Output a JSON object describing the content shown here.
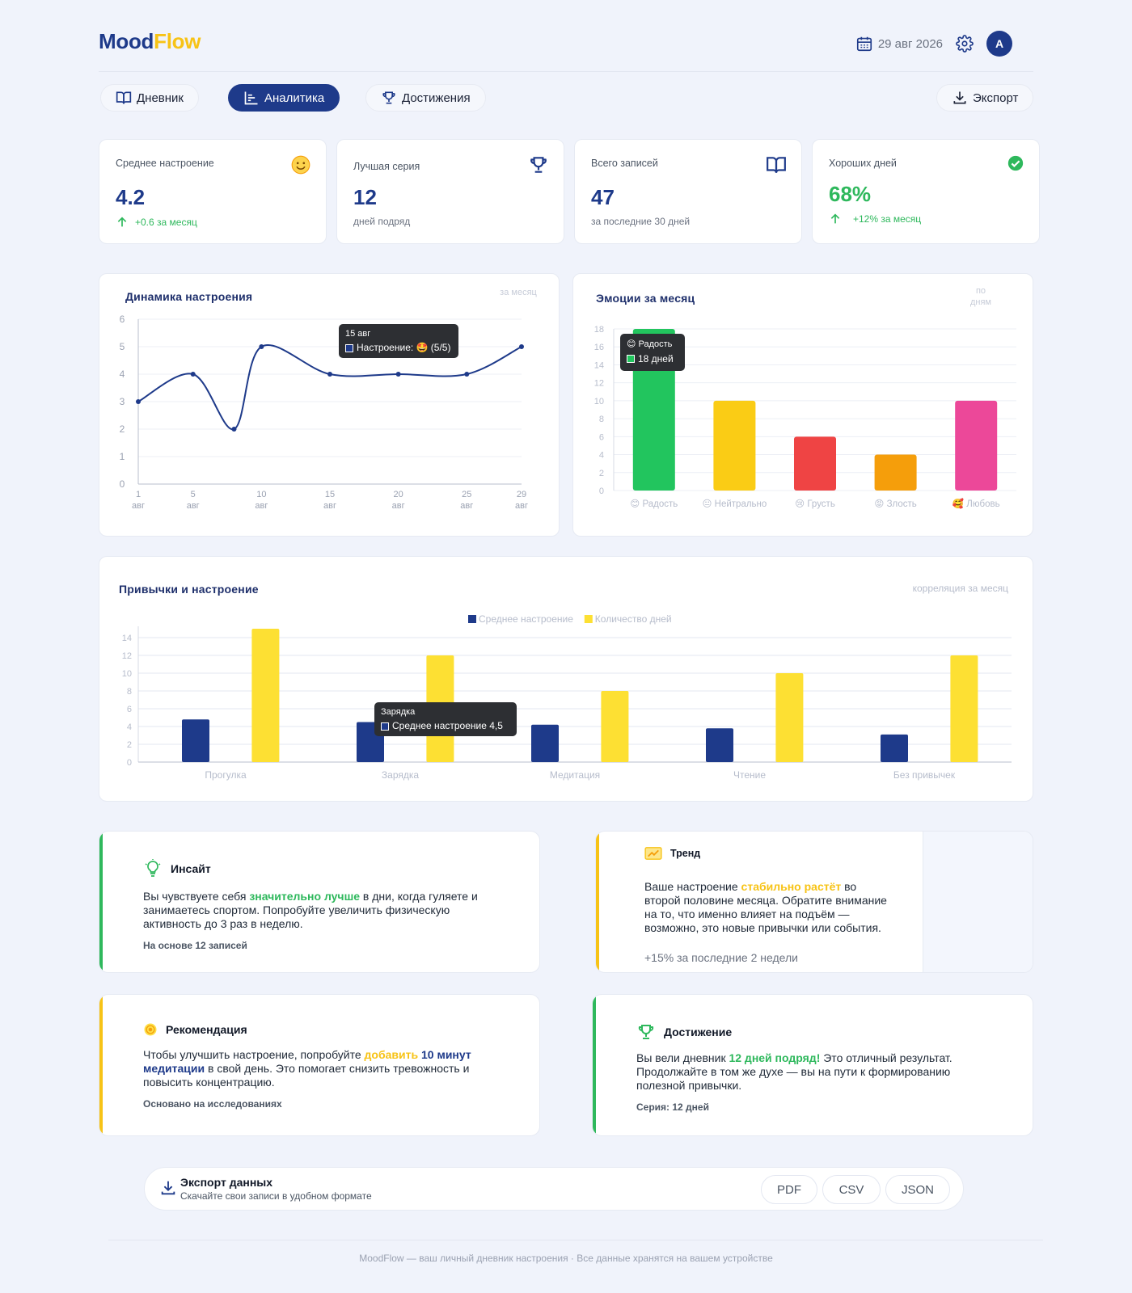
{
  "app": {
    "logo_part1": "Mood",
    "logo_part2": "Flow"
  },
  "header": {
    "date": "29 авг 2026",
    "avatar_initial": "A"
  },
  "nav": {
    "diary": "Дневник",
    "analytics": "Аналитика",
    "achievements": "Достижения",
    "export": "Экспорт",
    "active": "analytics"
  },
  "stats": [
    {
      "label": "Среднее настроение",
      "value": "4.2",
      "sub": "+0.6 за месяц",
      "icon": "smile-icon"
    },
    {
      "label": "Лучшая серия",
      "value": "12",
      "sub": "дней подряд",
      "icon": "trophy-icon"
    },
    {
      "label": "Всего записей",
      "value": "47",
      "sub": "за последние 30 дней",
      "icon": "book-icon"
    },
    {
      "label": "Хороших дней",
      "value": "68%",
      "sub": "+12% за месяц",
      "icon": "check-circle-icon"
    }
  ],
  "mood_chart": {
    "title": "Динамика настроения",
    "note": "за месяц",
    "tooltip": {
      "date": "15 авг",
      "text": "Настроение: 🤩 (5/5)"
    }
  },
  "emotions_chart": {
    "title": "Эмоции за месяц",
    "note": "по дням",
    "tooltip": {
      "title": "😊 Радость",
      "text": "18 дней"
    }
  },
  "habits_chart": {
    "title": "Привычки и настроение",
    "note": "корреляция за месяц",
    "tooltip": {
      "title": "Зарядка",
      "text": "Среднее настроение 4,5"
    }
  },
  "chart_data": [
    {
      "type": "line",
      "x": [
        1,
        5,
        8,
        10,
        15,
        20,
        25,
        29
      ],
      "y": [
        3,
        4,
        2,
        5,
        4,
        4,
        4,
        5
      ],
      "x_ticks": [
        "1 авг",
        "5 авг",
        "10 авг",
        "15 авг",
        "20 авг",
        "25 авг",
        "29 авг"
      ],
      "x_tick_values": [
        1,
        5,
        10,
        15,
        20,
        25,
        29
      ],
      "ylim": [
        0,
        6
      ],
      "y_ticks": [
        0,
        1,
        2,
        3,
        4,
        5,
        6
      ],
      "color": "#1e3a8a"
    },
    {
      "type": "bar",
      "categories": [
        "😊 Радость",
        "😐 Нейтрально",
        "😢 Грусть",
        "😡 Злость",
        "🥰 Любовь"
      ],
      "values": [
        18,
        10,
        6,
        4,
        10
      ],
      "colors": [
        "#22c55e",
        "#facc15",
        "#ef4444",
        "#f59e0b",
        "#ec4899"
      ],
      "ylim": [
        0,
        18
      ],
      "y_ticks": [
        0,
        2,
        4,
        6,
        8,
        10,
        12,
        14,
        16,
        18
      ]
    },
    {
      "type": "bar",
      "categories": [
        "Прогулка",
        "Зарядка",
        "Медитация",
        "Чтение",
        "Без привычек"
      ],
      "series": [
        {
          "name": "Среднее настроение",
          "values": [
            4.8,
            4.5,
            4.2,
            3.8,
            3.1
          ],
          "color": "#1e3a8a"
        },
        {
          "name": "Количество дней",
          "values": [
            15,
            12,
            8,
            10,
            12
          ],
          "color": "#fde033"
        }
      ],
      "ylim": [
        0,
        14
      ],
      "y_ticks": [
        0,
        2,
        4,
        6,
        8,
        10,
        12,
        14
      ]
    }
  ],
  "insight": {
    "title": "Инсайт",
    "t1": "Вы чувствуете себя ",
    "hl": "значительно лучше",
    "t2": " в дни, когда гуляете и занимаетесь спортом. Попробуйте увеличить физическую активность до 3 раз в неделю.",
    "foot": "На основе 12 записей"
  },
  "trend": {
    "title": "Тренд",
    "t1": "Ваше настроение ",
    "hl": "стабильно растёт",
    "t2": " во второй половине месяца. Обратите внимание на то, что именно влияет на подъём — возможно, это новые привычки или события.",
    "foot": "+15% за последние 2 недели"
  },
  "recommendation": {
    "title": "Рекомендация",
    "t1": "Чтобы улучшить настроение, попробуйте ",
    "hl1": "добавить",
    "hl2": " 10 минут медитации",
    "t2": " в свой день. Это помогает снизить тревожность и повысить концентрацию.",
    "foot": "Основано на исследованиях"
  },
  "achievement": {
    "title": "Достижение",
    "t1": "Вы вели дневник ",
    "hl": "12 дней подряд!",
    "t2": " Это отличный результат. Продолжайте в том же духе — вы на пути к формированию полезной привычки.",
    "foot": "Серия: 12 дней"
  },
  "export": {
    "title": "Экспорт данных",
    "subtitle": "Скачайте свои записи в удобном формате",
    "pdf": "PDF",
    "csv": "CSV",
    "json": "JSON"
  },
  "footer": "MoodFlow — ваш личный дневник настроения · Все данные хранятся на вашем устройстве"
}
